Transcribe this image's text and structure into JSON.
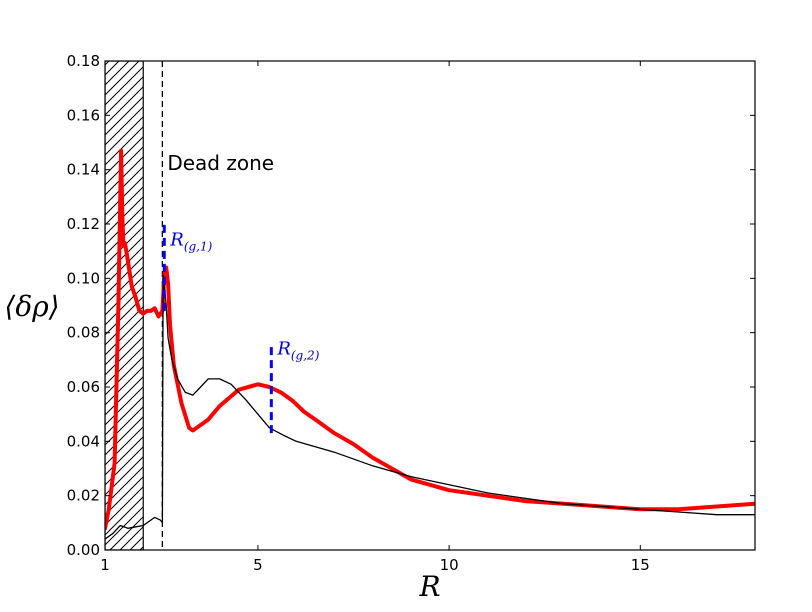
{
  "chart_data": {
    "type": "line",
    "xlabel": "R",
    "ylabel": "⟨δρ⟩",
    "xlim": [
      1,
      18
    ],
    "ylim": [
      0,
      0.18
    ],
    "x_ticks": [
      1,
      5,
      10,
      15
    ],
    "x_tick_labels": [
      "1",
      "5",
      "10",
      "15"
    ],
    "y_ticks": [
      0,
      0.02,
      0.04,
      0.06,
      0.08,
      0.1,
      0.12,
      0.14,
      0.16,
      0.18
    ],
    "y_tick_labels": [
      "0.00",
      "0.02",
      "0.04",
      "0.06",
      "0.08",
      "0.10",
      "0.12",
      "0.14",
      "0.16",
      "0.18"
    ],
    "grid": false,
    "hatched_region": [
      1,
      2
    ],
    "dead_zone_boundary_x": 2.5,
    "annotations": {
      "dead_zone": "Dead zone",
      "r_g1": {
        "label": "R",
        "sub": "(g,1)",
        "x": 2.55,
        "y_range": [
          0.088,
          0.121
        ]
      },
      "r_g2": {
        "label": "R",
        "sub": "(g,2)",
        "x": 5.35,
        "y_range": [
          0.043,
          0.076
        ]
      }
    },
    "series": [
      {
        "color": "#ff0000",
        "x": [
          1.0,
          1.1,
          1.25,
          1.35,
          1.42,
          1.45,
          1.48,
          1.52,
          1.58,
          1.7,
          1.8,
          1.9,
          2.0,
          2.1,
          2.2,
          2.3,
          2.4,
          2.5,
          2.55,
          2.6,
          2.65,
          2.7,
          2.8,
          3.0,
          3.2,
          3.3,
          3.5,
          3.7,
          4.0,
          4.5,
          5.0,
          5.3,
          5.6,
          5.9,
          6.2,
          6.6,
          7.0,
          7.5,
          8.0,
          8.5,
          9.0,
          9.5,
          10.0,
          10.5,
          11.0,
          12.0,
          13.0,
          14.0,
          15.0,
          16.0,
          17.0,
          18.0
        ],
        "values": [
          0.008,
          0.015,
          0.032,
          0.09,
          0.147,
          0.125,
          0.112,
          0.113,
          0.108,
          0.097,
          0.093,
          0.088,
          0.087,
          0.088,
          0.088,
          0.089,
          0.086,
          0.088,
          0.101,
          0.104,
          0.098,
          0.083,
          0.068,
          0.054,
          0.045,
          0.044,
          0.046,
          0.048,
          0.053,
          0.059,
          0.061,
          0.06,
          0.058,
          0.055,
          0.051,
          0.047,
          0.043,
          0.039,
          0.034,
          0.03,
          0.026,
          0.024,
          0.022,
          0.021,
          0.02,
          0.018,
          0.017,
          0.016,
          0.015,
          0.015,
          0.016,
          0.017
        ]
      },
      {
        "color": "#000000",
        "x": [
          1.0,
          1.2,
          1.4,
          1.6,
          2.0,
          2.3,
          2.45,
          2.5,
          2.52,
          2.55,
          2.6,
          2.65,
          2.75,
          2.9,
          3.1,
          3.3,
          3.5,
          3.7,
          4.0,
          4.3,
          4.7,
          5.0,
          5.3,
          5.7,
          6.0,
          6.5,
          7.0,
          8.0,
          9.0,
          10.0,
          11.0,
          12.0,
          13.0,
          14.0,
          15.0,
          16.0,
          17.0,
          18.0
        ],
        "values": [
          0.004,
          0.006,
          0.009,
          0.008,
          0.009,
          0.012,
          0.011,
          0.01,
          0.101,
          0.097,
          0.09,
          0.078,
          0.07,
          0.063,
          0.058,
          0.057,
          0.06,
          0.063,
          0.063,
          0.061,
          0.055,
          0.05,
          0.045,
          0.042,
          0.04,
          0.038,
          0.036,
          0.031,
          0.027,
          0.024,
          0.021,
          0.019,
          0.017,
          0.016,
          0.015,
          0.014,
          0.013,
          0.013
        ]
      }
    ]
  }
}
